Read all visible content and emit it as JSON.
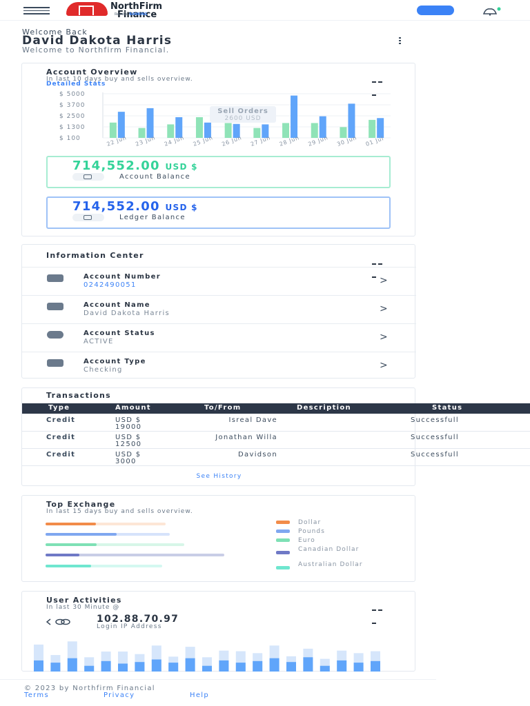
{
  "header": {
    "brand_name": "NorthFirm",
    "brand_name_2": "Finance",
    "brand_tagline": "Reliable",
    "brand_tagline_2": "BANKING",
    "brand_color": "#e02a2a",
    "accent_color": "#3b82f6",
    "menu_icon": "hamburger-icon",
    "notification_icon": "bell-icon"
  },
  "welcome": {
    "greeting": "Welcome Back",
    "name": "David Dakota Harris",
    "subtitle": "Welcome to Northfirm Financial."
  },
  "overview": {
    "title": "Account Overview",
    "subtitle": "In last 10 days buy and sells overview.",
    "link": "Detailed Stats",
    "tooltip_title": "Sell Orders",
    "tooltip_value": "2600 USD",
    "balances": [
      {
        "amount": "714,552.00",
        "currency": "USD $",
        "label": "Account Balance",
        "color": "#34d399"
      },
      {
        "amount": "714,552.00",
        "currency": "USD $",
        "label": "Ledger Balance",
        "color": "#2563eb"
      }
    ]
  },
  "chart_data": {
    "type": "bar",
    "categories": [
      "22 Jun",
      "23 Jun",
      "24 Jun",
      "25 Jun",
      "26 Jun",
      "27 Jun",
      "28 Jun",
      "29 Jun",
      "30 Jun",
      "01 Jul"
    ],
    "y_tick_labels": [
      "$ 5000",
      "$ 3700",
      "$ 2500",
      "$ 1300",
      "$ 100"
    ],
    "ylim": [
      100,
      5000
    ],
    "series": [
      {
        "values": [
          1800,
          1200,
          1600,
          2400,
          1750,
          1200,
          1750,
          1750,
          1300,
          2100
        ],
        "color": "#8fe3b7"
      },
      {
        "values": [
          3000,
          3400,
          2400,
          1800,
          1650,
          1600,
          4800,
          2500,
          3900,
          2300
        ],
        "color": "#60a5fa"
      }
    ]
  },
  "info": {
    "title": "Information Center",
    "rows": [
      {
        "label": "Account Number",
        "value": "0242490051",
        "icon": "wallet-icon"
      },
      {
        "label": "Account Name",
        "value": "David Dakota Harris",
        "icon": "user-icon"
      },
      {
        "label": "Account Status",
        "value": "ACTIVE",
        "icon": "question-icon"
      },
      {
        "label": "Account Type",
        "value": "Checking",
        "icon": "card-icon"
      }
    ],
    "chevron": ">"
  },
  "transactions": {
    "title": "Transactions",
    "columns": [
      "Type",
      "Amount",
      "To/From",
      "Description",
      "Status"
    ],
    "rows": [
      {
        "type": "Credit",
        "amount": "USD $ 19000",
        "to_from": "Isreal Dave",
        "description": "",
        "status": "Successfull"
      },
      {
        "type": "Credit",
        "amount": "USD $ 12500",
        "to_from": "Jonathan Willa",
        "description": "",
        "status": "Successfull"
      },
      {
        "type": "Credit",
        "amount": "USD $ 3000",
        "to_from": "Davidson",
        "description": "",
        "status": "Successfull"
      }
    ],
    "see_history": "See History"
  },
  "exchange": {
    "title": "Top Exchange",
    "subtitle": "In last 15 days buy and sells overview.",
    "items": [
      {
        "label": "Dollar",
        "value": 0.42,
        "color": "#f28c4a",
        "track": "#fde6d6"
      },
      {
        "label": "Pounds",
        "value": 0.57,
        "color": "#7fa7f0",
        "track": "#d6e3fb"
      },
      {
        "label": "Euro",
        "value": 0.37,
        "color": "#7ee0b5",
        "track": "#d7f6e8"
      },
      {
        "label": "Canadian Dollar",
        "value": 0.19,
        "color": "#6f79c6",
        "track": "#c9cde6"
      },
      {
        "label": "Australian Dollar",
        "value": 0.39,
        "color": "#6fe6cf",
        "track": "#d4f8f1"
      }
    ]
  },
  "activity": {
    "title": "User Activities",
    "subtitle": "In last 30 Minute @",
    "ip_address": "102.88.70.97",
    "ip_label": "Login IP Address",
    "bars": [
      {
        "light": 0.85,
        "dark": 0.35
      },
      {
        "light": 0.52,
        "dark": 0.28
      },
      {
        "light": 0.95,
        "dark": 0.42
      },
      {
        "light": 0.45,
        "dark": 0.18
      },
      {
        "light": 0.63,
        "dark": 0.33
      },
      {
        "light": 0.63,
        "dark": 0.25
      },
      {
        "light": 0.55,
        "dark": 0.3
      },
      {
        "light": 0.82,
        "dark": 0.38
      },
      {
        "light": 0.47,
        "dark": 0.28
      },
      {
        "light": 0.78,
        "dark": 0.42
      },
      {
        "light": 0.45,
        "dark": 0.18
      },
      {
        "light": 0.66,
        "dark": 0.35
      },
      {
        "light": 0.64,
        "dark": 0.28
      },
      {
        "light": 0.58,
        "dark": 0.33
      },
      {
        "light": 0.82,
        "dark": 0.42
      },
      {
        "light": 0.48,
        "dark": 0.3
      },
      {
        "light": 0.72,
        "dark": 0.45
      },
      {
        "light": 0.4,
        "dark": 0.18
      },
      {
        "light": 0.66,
        "dark": 0.35
      },
      {
        "light": 0.58,
        "dark": 0.28
      },
      {
        "light": 0.64,
        "dark": 0.33
      }
    ]
  },
  "footer": {
    "copyright": "© 2023 by Northfirm Financial",
    "links": [
      "Terms",
      "Privacy",
      "Help"
    ]
  }
}
